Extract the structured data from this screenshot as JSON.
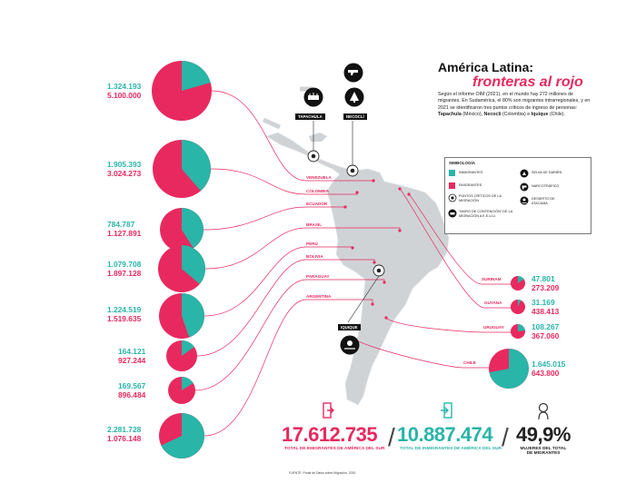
{
  "header": {
    "title_line1": "América Latina:",
    "title_line2": "fronteras al rojo",
    "intro": "Según el informe OIM (2021), en el mundo hay 272 millones de migrantes. En Sudamérica, el 80% son migrantes intrarregionales, y en 2021 se identificaron tres puntos críticos de ingreso de personas: ",
    "intro_point1": "Tapachula",
    "intro_point1_suffix": " (México), ",
    "intro_point2": "Necoclí",
    "intro_point2_suffix": " (Colombia) e ",
    "intro_point3": "Iquique",
    "intro_point3_suffix": " (Chile)."
  },
  "legend": {
    "title": "SIMBOLOGÍA",
    "immigrants": "INMIGRANTES",
    "emigrants": "EMIGRANTES",
    "critical_points": "PUNTOS CRÍTICOS DE LA MIGRACIÓN",
    "wall": "\"MURO DE CONTENCIÓN\" DE LA MIGRACIÓN A E.E.U.U.",
    "darien": "SELVA DE DARIÉN",
    "narco": "NARCOTRÁFICO",
    "atacama": "DESIERTO DE ATACAMA"
  },
  "points": {
    "tapachula": "TAPACHULA",
    "necocli": "NECOCLÍ",
    "iquique": "IQUIQUE"
  },
  "colors": {
    "immigrants": "#29b5a8",
    "emigrants": "#e8295f",
    "line": "#e8295f",
    "map": "#cfd3d6"
  },
  "chart_data": {
    "type": "pie",
    "series_names": [
      "Inmigrantes",
      "Emigrantes"
    ],
    "countries": [
      {
        "name": "VENEZUELA",
        "immigrants": 1324193,
        "emigrants": 5100000,
        "immigrants_label": "1.324.193",
        "emigrants_label": "5.100.000"
      },
      {
        "name": "COLOMBIA",
        "immigrants": 1905393,
        "emigrants": 3024273,
        "immigrants_label": "1.905.393",
        "emigrants_label": "3.024.273"
      },
      {
        "name": "ECUADOR",
        "immigrants": 784787,
        "emigrants": 1127891,
        "immigrants_label": "784.787",
        "emigrants_label": "1.127.891"
      },
      {
        "name": "BRASIL",
        "immigrants": 1079708,
        "emigrants": 1897128,
        "immigrants_label": "1.079.708",
        "emigrants_label": "1.897.128"
      },
      {
        "name": "PERÚ",
        "immigrants": 1224519,
        "emigrants": 1519635,
        "immigrants_label": "1.224.519",
        "emigrants_label": "1.519.635"
      },
      {
        "name": "BOLIVIA",
        "immigrants": 164121,
        "emigrants": 927244,
        "immigrants_label": "164.121",
        "emigrants_label": "927.244"
      },
      {
        "name": "PARAGUAY",
        "immigrants": 169567,
        "emigrants": 896484,
        "immigrants_label": "169.567",
        "emigrants_label": "896.484"
      },
      {
        "name": "ARGENTINA",
        "immigrants": 2281728,
        "emigrants": 1076148,
        "immigrants_label": "2.281.728",
        "emigrants_label": "1.076.148"
      },
      {
        "name": "SURINAM",
        "immigrants": 47801,
        "emigrants": 273209,
        "immigrants_label": "47.801",
        "emigrants_label": "273.209"
      },
      {
        "name": "GUYANA",
        "immigrants": 31169,
        "emigrants": 438413,
        "immigrants_label": "31.169",
        "emigrants_label": "438.413"
      },
      {
        "name": "URUGUAY",
        "immigrants": 108267,
        "emigrants": 367060,
        "immigrants_label": "108.267",
        "emigrants_label": "367.060"
      },
      {
        "name": "CHILE",
        "immigrants": 1645015,
        "emigrants": 643800,
        "immigrants_label": "1.645.015",
        "emigrants_label": "643.800"
      }
    ]
  },
  "totals": {
    "emigrants_value": "17.612.735",
    "emigrants_label": "TOTAL DE EMIGRANTES DE AMÉRICA DEL SUR",
    "immigrants_value": "10.887.474",
    "immigrants_label": "TOTAL DE INMIGRANTES DE AMÉRICA DEL SUR",
    "separator": "/",
    "women_value": "49,9%",
    "women_label": "MUJERES DEL TOTAL DE MIGRANTES"
  },
  "source": "FUENTE: Portal de Datos sobre Migración, 2020."
}
